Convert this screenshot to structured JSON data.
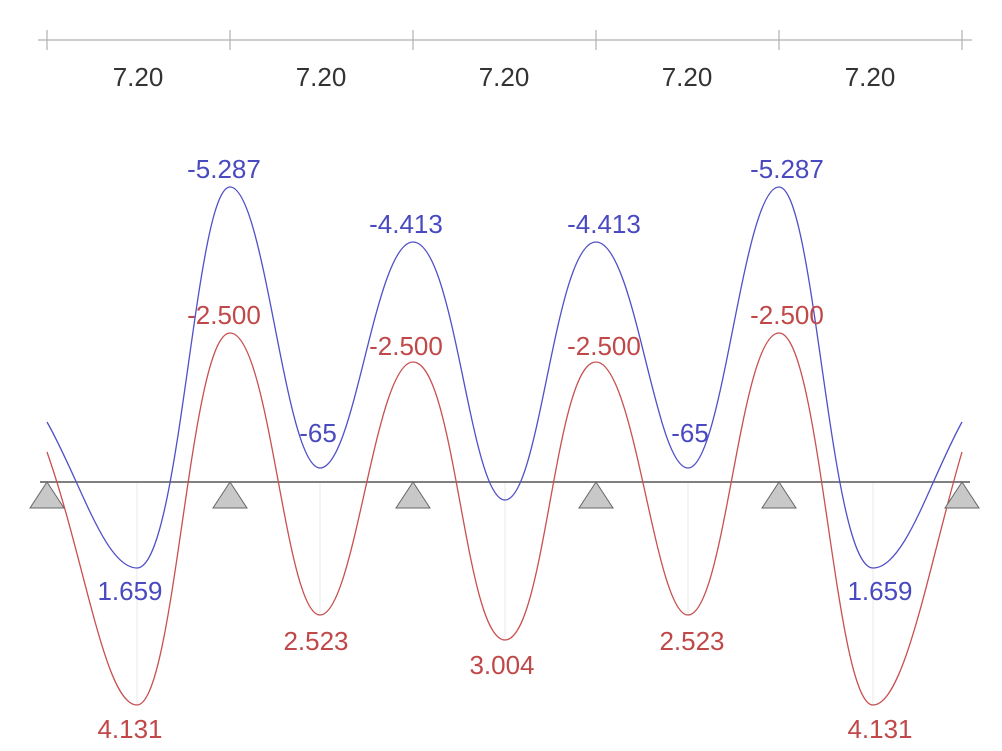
{
  "dimension_line": {
    "spans": [
      {
        "label": "7.20"
      },
      {
        "label": "7.20"
      },
      {
        "label": "7.20"
      },
      {
        "label": "7.20"
      },
      {
        "label": "7.20"
      }
    ]
  },
  "colors": {
    "envelope_upper": "#5050c8",
    "envelope_lower": "#c85050",
    "beam": "#808080",
    "support_fill": "#c8c8c8",
    "support_stroke": "#666666",
    "dimension_line": "#b0b0b0",
    "gridline": "#e8e8e8"
  },
  "supports": [
    {
      "name": "support-1"
    },
    {
      "name": "support-2"
    },
    {
      "name": "support-3"
    },
    {
      "name": "support-4"
    },
    {
      "name": "support-5"
    },
    {
      "name": "support-6"
    }
  ],
  "blue_labels": [
    {
      "text": "-5.287"
    },
    {
      "text": "-4.413"
    },
    {
      "text": "-4.413"
    },
    {
      "text": "-5.287"
    },
    {
      "text": "-65"
    },
    {
      "text": "-65"
    },
    {
      "text": "1.659"
    },
    {
      "text": "1.659"
    }
  ],
  "red_labels": [
    {
      "text": "-2.500"
    },
    {
      "text": "-2.500"
    },
    {
      "text": "-2.500"
    },
    {
      "text": "-2.500"
    },
    {
      "text": "2.523"
    },
    {
      "text": "3.004"
    },
    {
      "text": "2.523"
    },
    {
      "text": "4.131"
    },
    {
      "text": "4.131"
    }
  ]
}
